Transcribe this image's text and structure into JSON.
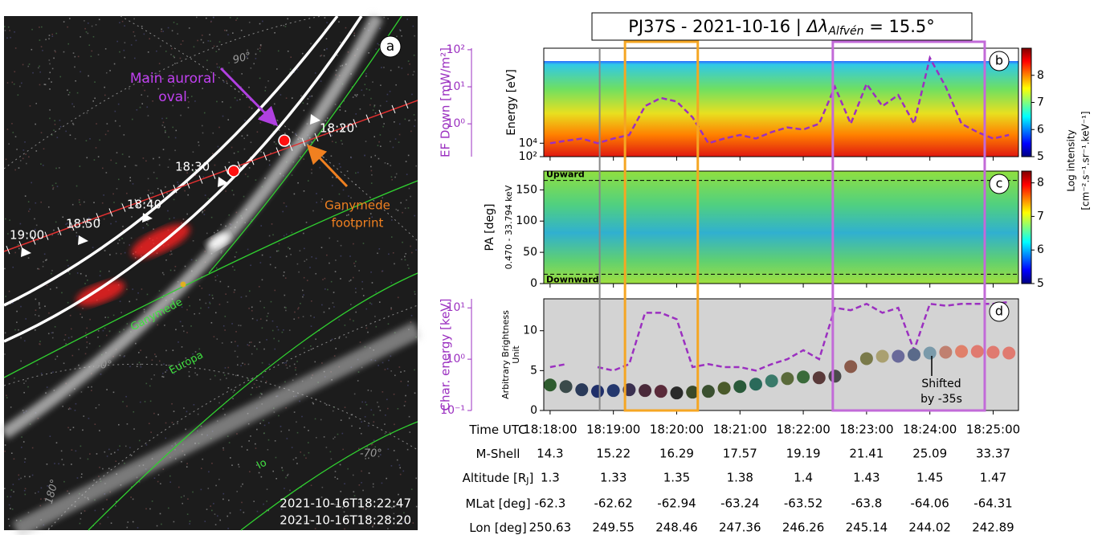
{
  "figure_title": {
    "prefix": "PJ37S - 2021-10-16 | ",
    "symbol": "Δλ",
    "sub": "Alfvén",
    "suffix": " = 15.5°"
  },
  "image_panel": {
    "label": "a",
    "lat_90": "90°",
    "lat_80": "-80°",
    "lat_70": "-70°",
    "lon_180": "180°",
    "main_oval": [
      "Main auroral",
      "oval"
    ],
    "ganymede_footprint": [
      "Ganymede",
      "footprint"
    ],
    "times": [
      "18:20",
      "18:30",
      "18:40",
      "18:50",
      "19:00"
    ],
    "moons": [
      "Ganymede",
      "Europa",
      "Io"
    ],
    "timestamps": [
      "2021-10-16T18:22:47",
      "2021-10-16T18:28:20"
    ]
  },
  "chart_data": [
    {
      "type": "line",
      "panel_label": "b",
      "x": [
        "18:18:00",
        "18:18:15",
        "18:18:30",
        "18:18:45",
        "18:19:00",
        "18:19:15",
        "18:19:30",
        "18:19:45",
        "18:20:00",
        "18:20:15",
        "18:20:30",
        "18:20:45",
        "18:21:00",
        "18:21:15",
        "18:21:30",
        "18:21:45",
        "18:22:00",
        "18:22:15",
        "18:22:30",
        "18:22:45",
        "18:23:00",
        "18:23:15",
        "18:23:30",
        "18:23:45",
        "18:24:00",
        "18:24:15",
        "18:24:30",
        "18:24:45",
        "18:25:00",
        "18:25:15"
      ],
      "xlim": [
        "18:17:54",
        "18:25:24"
      ],
      "series": [
        {
          "color": "#9b30c0",
          "dashed": true,
          "values": [
            0.3,
            0.35,
            0.4,
            0.3,
            0.4,
            0.5,
            3,
            5,
            4,
            1.5,
            0.3,
            0.4,
            0.5,
            0.4,
            0.6,
            0.8,
            0.7,
            1,
            10,
            1,
            12,
            3,
            6,
            1,
            60,
            10,
            1,
            0.6,
            0.4,
            0.5
          ]
        }
      ],
      "ylabel": "EF Down [mW/m²]",
      "log_y": true,
      "ylim": [
        0.13,
        110
      ],
      "yticks": [
        {
          "value": 1,
          "label": "10⁰"
        },
        {
          "value": 10,
          "label": "10¹"
        },
        {
          "value": 100,
          "label": "10²"
        }
      ],
      "y2label": "Energy [eV]",
      "y2lim": [
        100,
        80000
      ],
      "y2ticks": [
        {
          "value": 100,
          "label": "10²"
        },
        {
          "value": 10000,
          "label": "10⁴"
        }
      ],
      "clim": [
        5,
        9
      ],
      "cticks": [
        5,
        6,
        7,
        8
      ],
      "vline": "18:18:47",
      "highlights": [
        {
          "start": "18:19:11",
          "end": "18:20:20",
          "color": "#f5a623"
        },
        {
          "start": "18:22:28",
          "end": "18:24:52",
          "color": "#c26ad8"
        }
      ]
    },
    {
      "type": "heatmap",
      "panel_label": "c",
      "xlim": [
        "18:17:54",
        "18:25:24"
      ],
      "ylabel": "PA [deg]",
      "ysublabel": "0.470 - 33.794 keV",
      "ylim": [
        0,
        180
      ],
      "yticks": [
        0,
        50,
        100,
        150
      ],
      "reference_lines": [
        {
          "value": 165,
          "label": "Upward"
        },
        {
          "value": 15,
          "label": "Downward"
        }
      ],
      "clim": [
        5,
        8.35
      ],
      "cticks": [
        5,
        6,
        7,
        8
      ],
      "colorbar_label": [
        "Log intensity",
        "[cm⁻².s⁻¹.sr⁻¹.keV⁻¹]"
      ]
    },
    {
      "type": "line",
      "panel_label": "d",
      "x": [
        "18:18:00",
        "18:18:15",
        "18:18:30",
        "18:18:45",
        "18:19:00",
        "18:19:15",
        "18:19:30",
        "18:19:45",
        "18:20:00",
        "18:20:15",
        "18:20:30",
        "18:20:45",
        "18:21:00",
        "18:21:15",
        "18:21:30",
        "18:21:45",
        "18:22:00",
        "18:22:15",
        "18:22:30",
        "18:22:45",
        "18:23:00",
        "18:23:15",
        "18:23:30",
        "18:23:45",
        "18:24:00",
        "18:24:15",
        "18:24:30",
        "18:24:45",
        "18:25:00",
        "18:25:15"
      ],
      "xlim": [
        "18:17:54",
        "18:25:24"
      ],
      "series": [
        {
          "color": "#9b30c0",
          "dashed": true,
          "values": [
            0.7,
            0.8,
            null,
            0.7,
            0.6,
            0.8,
            8,
            8,
            6,
            0.7,
            0.8,
            0.7,
            0.7,
            0.6,
            0.8,
            1,
            1.5,
            1,
            10,
            9,
            12,
            8,
            10,
            1.5,
            12,
            11,
            12,
            12,
            12,
            13
          ]
        },
        {
          "axis": "y2",
          "marker": "dot",
          "colors": [
            "#2e5b2e",
            "#3a4a4a",
            "#2a3a5a",
            "#1f2f6a",
            "#24386e",
            "#3a3050",
            "#4a2a3a",
            "#5a2a3a",
            "#2a2a2a",
            "#3a4a2a",
            "#3a5030",
            "#4a5a2a",
            "#2a5a3a",
            "#2a6a5a",
            "#3a7a6a",
            "#5a6a3a",
            "#3a6a3a",
            "#5a3a3a",
            "#4a4a4a",
            "#8a5a4a",
            "#7a7a4a",
            "#aaa070",
            "#6a6a9a",
            "#5a6a8a",
            "#7a9aaa",
            "#c08070",
            "#e0806a",
            "#e07a70",
            "#e07a70",
            "#e07a70"
          ],
          "values": [
            3.2,
            3,
            2.6,
            2.4,
            2.5,
            2.6,
            2.5,
            2.4,
            2.2,
            2.3,
            2.4,
            2.8,
            3,
            3.3,
            3.7,
            4,
            4.2,
            4.1,
            4.3,
            5.5,
            6.5,
            6.8,
            6.8,
            7,
            7.2,
            7.3,
            7.4,
            7.4,
            7.3,
            7.2
          ]
        }
      ],
      "ylabel": "Char. energy [keV]",
      "log_y": true,
      "ylim": [
        0.1,
        15
      ],
      "yticks": [
        {
          "value": 0.1,
          "label": "10⁻¹"
        },
        {
          "value": 1,
          "label": "10⁰"
        },
        {
          "value": 10,
          "label": "10¹"
        }
      ],
      "y2label": [
        "Arbitrary Brightness",
        "Unit"
      ],
      "y2lim": [
        0,
        14
      ],
      "y2ticks": [
        0,
        5,
        10
      ],
      "annotation": [
        "Shifted",
        "by -35s"
      ]
    }
  ],
  "table": {
    "rows": [
      {
        "label": [
          "Time UTC"
        ],
        "values": [
          "18:18:00",
          "18:19:00",
          "18:20:00",
          "18:21:00",
          "18:22:00",
          "18:23:00",
          "18:24:00",
          "18:25:00"
        ]
      },
      {
        "label": [
          "M-Shell"
        ],
        "values": [
          "14.3",
          "15.22",
          "16.29",
          "17.57",
          "19.19",
          "21.41",
          "25.09",
          "33.37"
        ]
      },
      {
        "label": [
          "Altitude [R",
          "J",
          "]"
        ],
        "values": [
          "1.3",
          "1.33",
          "1.35",
          "1.38",
          "1.4",
          "1.43",
          "1.45",
          "1.47"
        ]
      },
      {
        "label": [
          "MLat [deg]"
        ],
        "values": [
          "-62.3",
          "-62.62",
          "-62.94",
          "-63.24",
          "-63.52",
          "-63.8",
          "-64.06",
          "-64.31"
        ]
      },
      {
        "label": [
          "Lon [deg]"
        ],
        "values": [
          "250.63",
          "249.55",
          "248.46",
          "247.36",
          "246.26",
          "245.14",
          "244.02",
          "242.89"
        ]
      }
    ]
  }
}
